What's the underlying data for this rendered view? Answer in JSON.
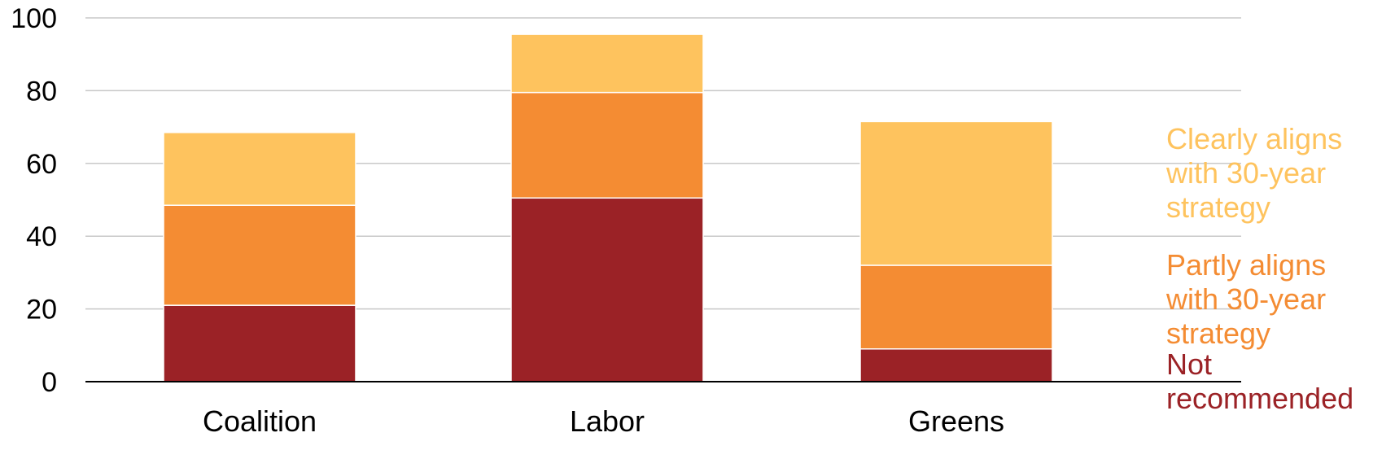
{
  "chart_data": {
    "type": "bar",
    "stacked": true,
    "categories": [
      "Coalition",
      "Labor",
      "Greens"
    ],
    "series": [
      {
        "name": "Not recommended",
        "color": "#9b2226",
        "values": [
          21,
          50.5,
          9
        ]
      },
      {
        "name": "Partly aligns with 30-year strategy",
        "color": "#f48c33",
        "values": [
          27.5,
          29,
          23
        ]
      },
      {
        "name": "Clearly aligns with 30-year strategy",
        "color": "#fec35e",
        "values": [
          20,
          16,
          39.5
        ]
      }
    ],
    "ylim": [
      0,
      100
    ],
    "yticks": [
      0,
      20,
      40,
      60,
      80,
      100
    ],
    "grid": true,
    "legend": "right",
    "legend_lines": [
      [
        "Clearly aligns",
        "with 30-year",
        "strategy"
      ],
      [
        "Partly aligns",
        "with 30-year",
        "strategy"
      ],
      [
        "Not",
        "recommended"
      ]
    ],
    "title": "",
    "xlabel": "",
    "ylabel": ""
  }
}
